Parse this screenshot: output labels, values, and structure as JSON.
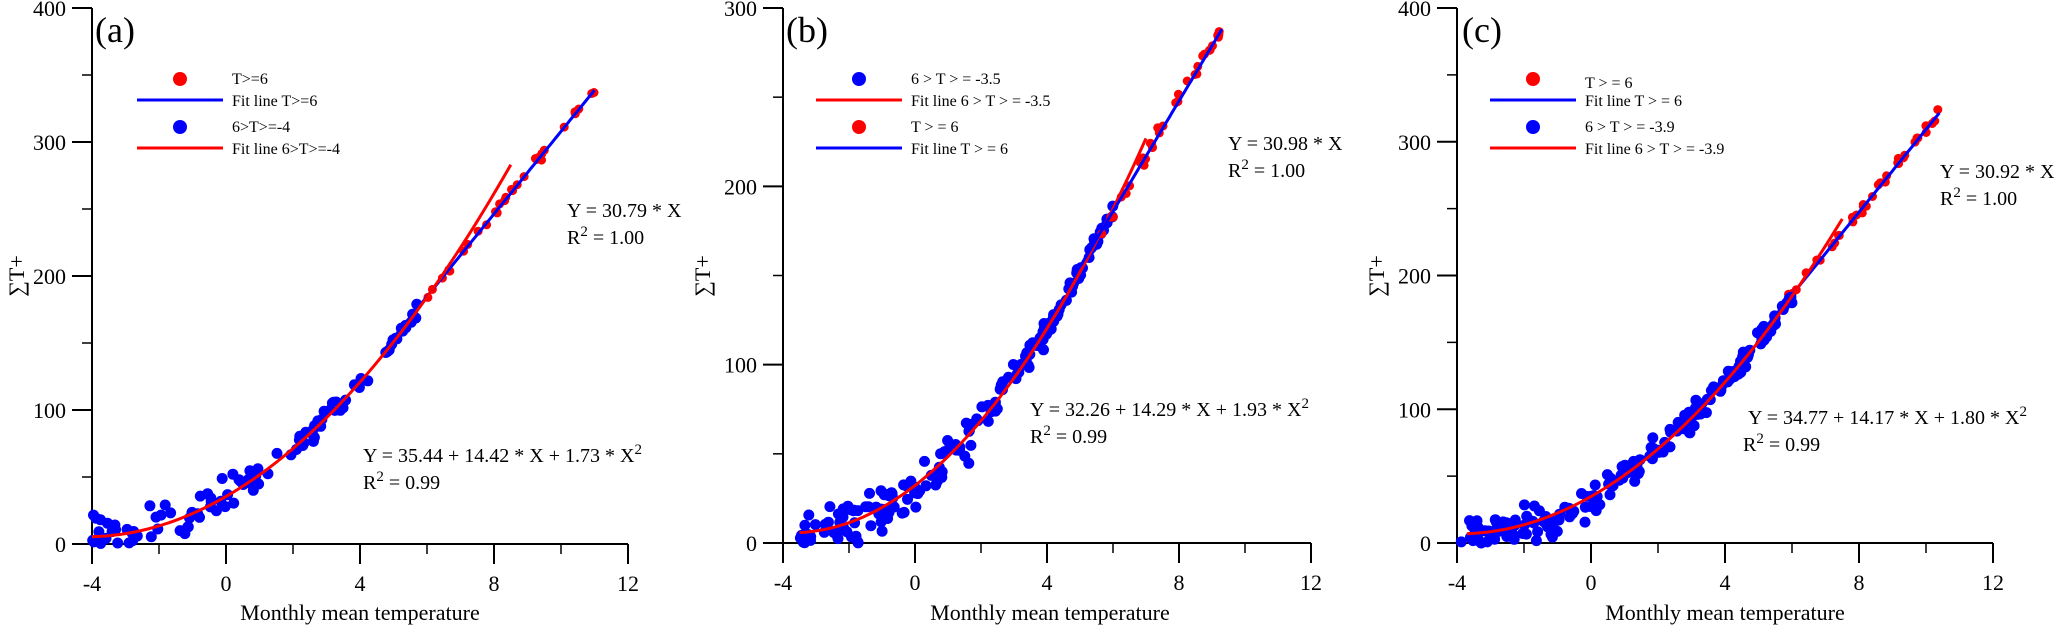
{
  "chart_data": [
    {
      "type": "scatter",
      "panel_label": "(a)",
      "xlabel": "Monthly mean temperature",
      "ylabel": "∑T+",
      "xlim": [
        -4,
        12
      ],
      "ylim": [
        0,
        400
      ],
      "xticks": [
        "-4",
        "0",
        "4",
        "8",
        "12"
      ],
      "yticks": [
        "0",
        "100",
        "200",
        "300",
        "400"
      ],
      "legend": [
        "T>=6",
        "Fit line T>=6",
        "6>T>=-4",
        "Fit line 6>T>=-4"
      ],
      "legend_position": "top-left",
      "series": [
        {
          "name": "T>=6",
          "kind": "points",
          "color": "#ff0000",
          "x_range": [
            6,
            11
          ],
          "count": 32,
          "fit": {
            "type": "linear",
            "slope": 30.79
          }
        },
        {
          "name": "6>T>=-4",
          "kind": "points",
          "color": "#0000ff",
          "x_range": [
            -4,
            6
          ],
          "count": 110,
          "fit": {
            "type": "quadratic",
            "a": 35.44,
            "b": 14.42,
            "c": 1.73
          }
        },
        {
          "name": "Fit line T>=6",
          "kind": "line",
          "color": "#0000ff",
          "x_range": [
            5,
            11
          ],
          "equation": "Y = 30.79 * X",
          "r2": "R2 = 1.00"
        },
        {
          "name": "Fit line 6>T>=-4",
          "kind": "line",
          "color": "#ff0000",
          "x_range": [
            -4,
            8.5
          ],
          "equation": "Y = 35.44 + 14.42 * X + 1.73 * X2",
          "r2": "R2 = 0.99"
        }
      ],
      "annotations": {
        "linear_eq": "Y = 30.79 * X",
        "linear_r2_prefix": "R",
        "linear_r2_value": " = 1.00",
        "quad_eq_prefix": "Y = 35.44 + 14.42 * X + 1.73 * X",
        "quad_r2_prefix": "R",
        "quad_r2_value": " = 0.99",
        "sup": "2"
      }
    },
    {
      "type": "scatter",
      "panel_label": "(b)",
      "xlabel": "Monthly mean temperature",
      "ylabel": "∑T+",
      "xlim": [
        -4,
        12
      ],
      "ylim": [
        0,
        300
      ],
      "xticks": [
        "-4",
        "0",
        "4",
        "8",
        "12"
      ],
      "yticks": [
        "0",
        "100",
        "200",
        "300"
      ],
      "legend": [
        "6 > T > = -3.5",
        "Fit line  6 > T > = -3.5",
        "T > = 6",
        "Fit line T > = 6"
      ],
      "legend_position": "top-left",
      "series": [
        {
          "name": "6 > T > = -3.5",
          "kind": "points",
          "color": "#0000ff",
          "x_range": [
            -3.5,
            6
          ],
          "count": 190,
          "fit": {
            "type": "quadratic",
            "a": 32.26,
            "b": 14.29,
            "c": 1.93
          }
        },
        {
          "name": "T > = 6",
          "kind": "points",
          "color": "#ff0000",
          "x_range": [
            5.5,
            9.3
          ],
          "count": 35,
          "fit": {
            "type": "linear",
            "slope": 30.98
          }
        },
        {
          "name": "Fit line  6 > T > = -3.5",
          "kind": "line",
          "color": "#ff0000",
          "x_range": [
            -3.5,
            7
          ],
          "equation": "Y = 32.26 + 14.29 * X + 1.93 * X2",
          "r2": "R2 = 0.99"
        },
        {
          "name": "Fit line T > = 6",
          "kind": "line",
          "color": "#0000ff",
          "x_range": [
            5,
            9.3
          ],
          "equation": "Y = 30.98 * X",
          "r2": "R2 = 1.00"
        }
      ],
      "annotations": {
        "linear_eq": "Y = 30.98 * X",
        "linear_r2_prefix": "R",
        "linear_r2_value": " = 1.00",
        "quad_eq_prefix": "Y = 32.26 + 14.29 * X + 1.93 * X",
        "quad_r2_prefix": "R",
        "quad_r2_value": " = 0.99",
        "sup": "2"
      }
    },
    {
      "type": "scatter",
      "panel_label": "(c)",
      "xlabel": "Monthly mean temperature",
      "ylabel": "∑T+",
      "xlim": [
        -4,
        12
      ],
      "ylim": [
        0,
        400
      ],
      "xticks": [
        "-4",
        "0",
        "4",
        "8",
        "12"
      ],
      "yticks": [
        "0",
        "100",
        "200",
        "300",
        "400"
      ],
      "legend": [
        "T > = 6",
        "Fit line T > = 6",
        "6 > T > = -3.9",
        "Fit line  6 > T > = -3.9"
      ],
      "legend_position": "top-left",
      "series": [
        {
          "name": "T > = 6",
          "kind": "points",
          "color": "#ff0000",
          "x_range": [
            5.5,
            10.4
          ],
          "count": 35,
          "fit": {
            "type": "linear",
            "slope": 30.92
          }
        },
        {
          "name": "6 > T > = -3.9",
          "kind": "points",
          "color": "#0000ff",
          "x_range": [
            -3.9,
            6
          ],
          "count": 200,
          "fit": {
            "type": "quadratic",
            "a": 34.77,
            "b": 14.17,
            "c": 1.8
          }
        },
        {
          "name": "Fit line T > = 6",
          "kind": "line",
          "color": "#0000ff",
          "x_range": [
            5,
            10.4
          ],
          "equation": "Y = 30.92 * X",
          "r2": "R2 = 1.00"
        },
        {
          "name": "Fit line  6 > T > = -3.9",
          "kind": "line",
          "color": "#ff0000",
          "x_range": [
            -3.7,
            7.5
          ],
          "equation": "Y = 34.77 + 14.17 * X + 1.80 * X2",
          "r2": "R2 = 0.99"
        }
      ],
      "annotations": {
        "linear_eq": "Y = 30.92 * X",
        "linear_r2_prefix": "R",
        "linear_r2_value": " = 1.00",
        "quad_eq_prefix": "Y = 34.77 + 14.17 * X + 1.80 * X",
        "quad_r2_prefix": "R",
        "quad_r2_value": " = 0.99",
        "sup": "2"
      }
    }
  ]
}
